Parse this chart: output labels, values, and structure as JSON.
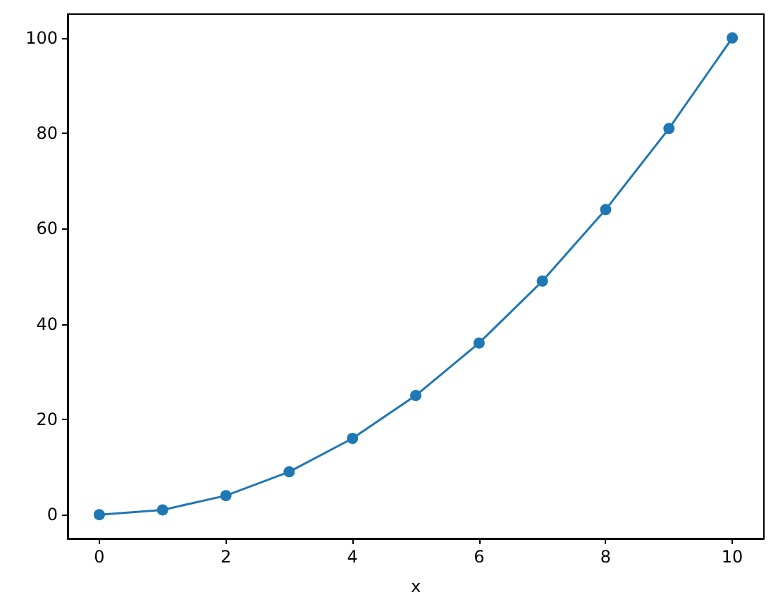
{
  "chart_data": {
    "type": "line",
    "xlabel": "x",
    "x": [
      0,
      1,
      2,
      3,
      4,
      5,
      6,
      7,
      8,
      9,
      10
    ],
    "series": [
      {
        "color": "#1f77b4",
        "values": [
          0,
          1,
          4,
          9,
          16,
          25,
          36,
          49,
          64,
          81,
          100
        ]
      }
    ],
    "xlim": [
      -0.5,
      10.5
    ],
    "xticks": [
      0,
      2,
      4,
      6,
      8,
      10
    ],
    "ylim": [
      -5,
      105
    ],
    "yticks": [
      0,
      20,
      40,
      60,
      80,
      100
    ],
    "grid": false,
    "marker": "circle",
    "line_style": "solid"
  }
}
